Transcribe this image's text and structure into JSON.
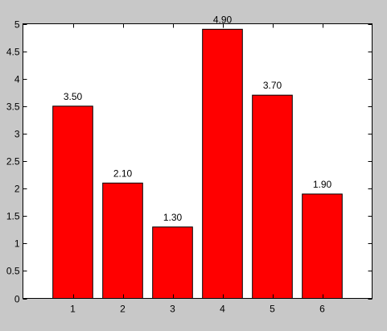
{
  "chart_data": {
    "type": "bar",
    "categories": [
      "1",
      "2",
      "3",
      "4",
      "5",
      "6"
    ],
    "values": [
      3.5,
      2.1,
      1.3,
      4.9,
      3.7,
      1.9
    ],
    "data_labels": [
      "3.50",
      "2.10",
      "1.30",
      "4.90",
      "3.70",
      "1.90"
    ],
    "y_ticks": [
      "0",
      "0.5",
      "1",
      "1.5",
      "2",
      "2.5",
      "3",
      "3.5",
      "4",
      "4.5",
      "5"
    ],
    "y_tick_values": [
      0,
      0.5,
      1,
      1.5,
      2,
      2.5,
      3,
      3.5,
      4,
      4.5,
      5
    ],
    "ylim": [
      0,
      5
    ],
    "xlim": [
      0,
      7
    ],
    "grid": false,
    "title": "",
    "xlabel": "",
    "ylabel": "",
    "colors": {
      "bar_fill": "#ff0000",
      "bar_stroke": "#000000",
      "plot_background": "#ffffff",
      "figure_background": "#c8c8c8",
      "axis": "#000000"
    }
  }
}
